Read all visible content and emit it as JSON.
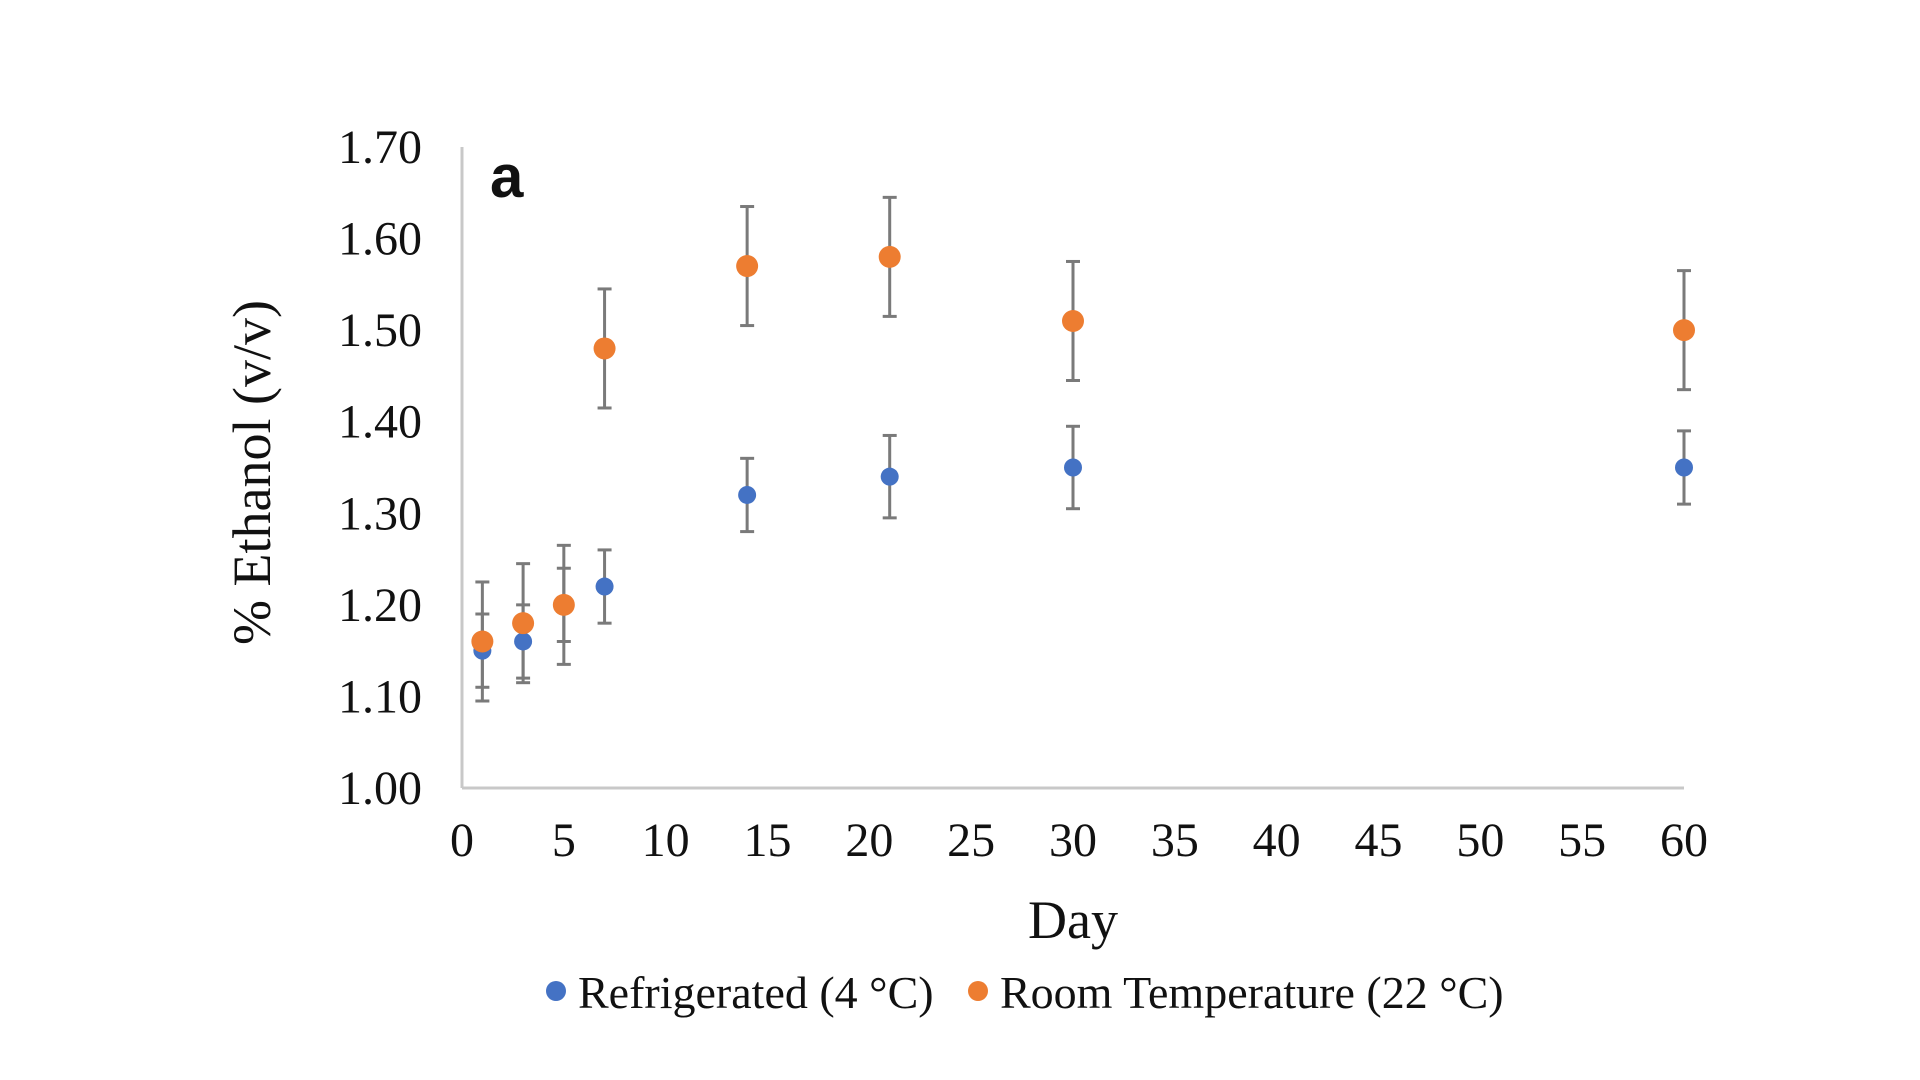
{
  "chart_data": {
    "type": "scatter",
    "panel_label": "a",
    "xlabel": "Day",
    "ylabel": "% Ethanol (v/v)",
    "xlim": [
      0,
      60
    ],
    "ylim": [
      1.0,
      1.7
    ],
    "xticks": [
      "0",
      "5",
      "10",
      "15",
      "20",
      "25",
      "30",
      "35",
      "40",
      "45",
      "50",
      "55",
      "60"
    ],
    "yticks": [
      "1.00",
      "1.10",
      "1.20",
      "1.30",
      "1.40",
      "1.50",
      "1.60",
      "1.70"
    ],
    "grid": false,
    "legend_position": "bottom",
    "series": [
      {
        "name": "Refrigerated (4 °C)",
        "color": "#4472c4",
        "x": [
          1,
          3,
          5,
          7,
          14,
          21,
          30,
          60
        ],
        "y": [
          1.15,
          1.16,
          1.2,
          1.22,
          1.32,
          1.34,
          1.35,
          1.35
        ],
        "error": [
          0.04,
          0.04,
          0.04,
          0.04,
          0.04,
          0.045,
          0.045,
          0.04
        ]
      },
      {
        "name": "Room Temperature (22 °C)",
        "color": "#ed7d31",
        "x": [
          1,
          3,
          5,
          7,
          14,
          21,
          30,
          60
        ],
        "y": [
          1.16,
          1.18,
          1.2,
          1.48,
          1.57,
          1.58,
          1.51,
          1.5
        ],
        "error": [
          0.065,
          0.065,
          0.065,
          0.065,
          0.065,
          0.065,
          0.065,
          0.065
        ]
      }
    ]
  }
}
